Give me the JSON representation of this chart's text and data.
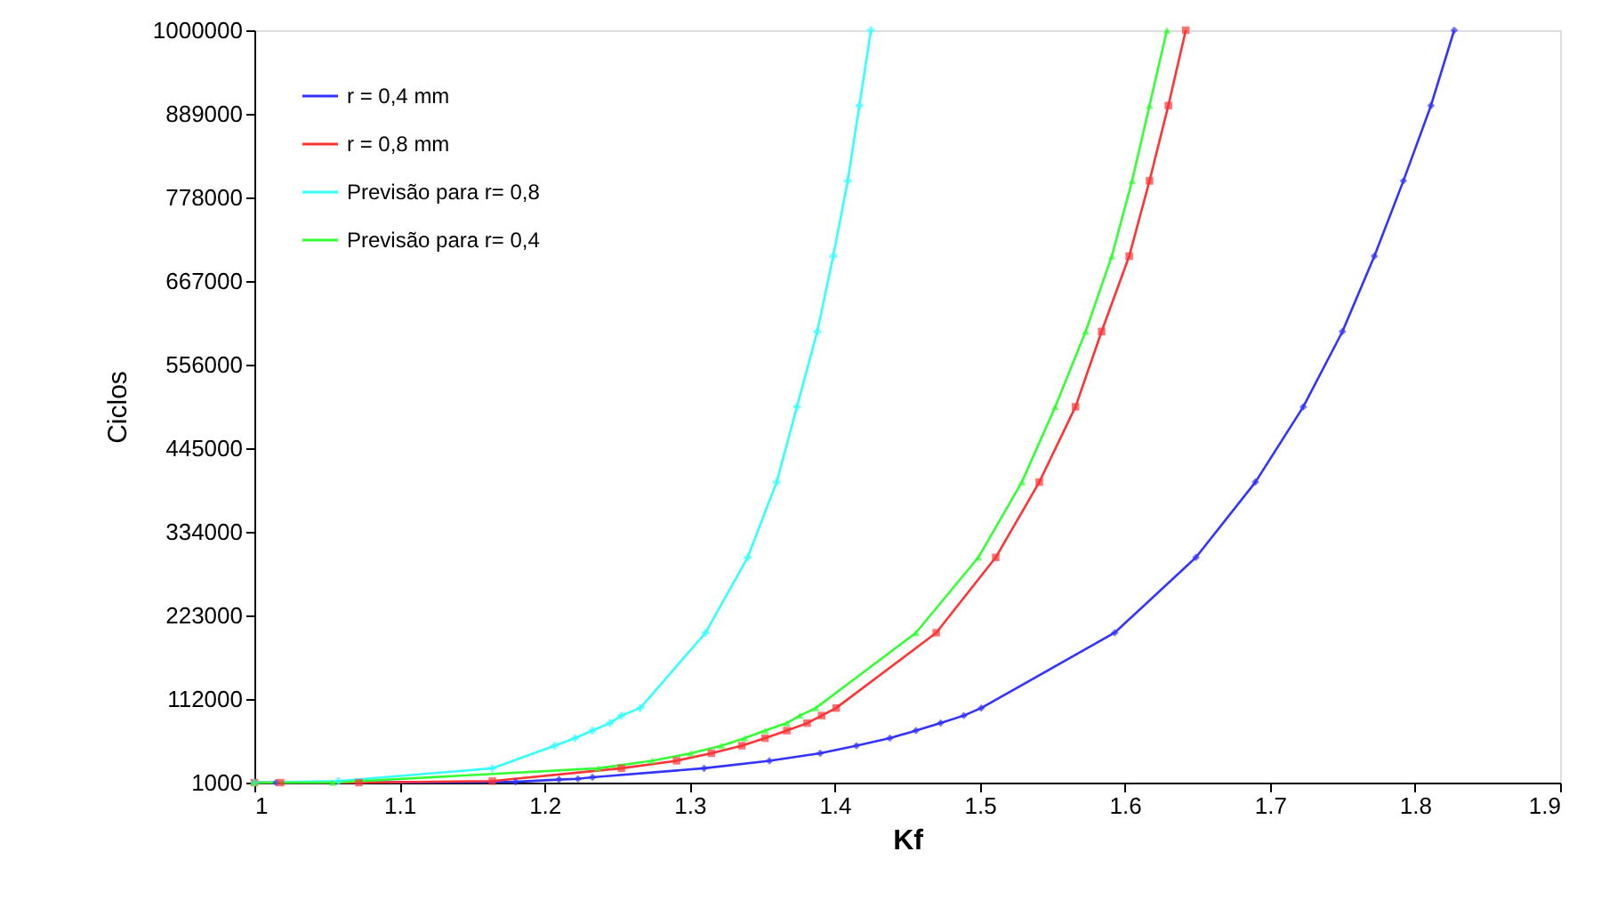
{
  "chart_data": {
    "type": "line",
    "xlabel": "Kf",
    "ylabel": "Ciclos",
    "xlim": [
      1,
      1.9
    ],
    "xticks": [
      1,
      1.1,
      1.2,
      1.3,
      1.4,
      1.5,
      1.6,
      1.7,
      1.8,
      1.9
    ],
    "ylim": [
      1000,
      1000000
    ],
    "yticks": [
      1000,
      112000,
      223000,
      334000,
      445000,
      556000,
      667000,
      778000,
      889000,
      1000000
    ],
    "grid": false,
    "legend": "top left",
    "line_style": "solid",
    "series": [
      {
        "name": "r = 0,4 mm",
        "color": "#3333ff",
        "marker": "diamond",
        "x": [
          1.0,
          1.015,
          1.18,
          1.21,
          1.223,
          1.233,
          1.31,
          1.355,
          1.39,
          1.415,
          1.438,
          1.456,
          1.473,
          1.489,
          1.501,
          1.593,
          1.649,
          1.69,
          1.723,
          1.75,
          1.772,
          1.792,
          1.811,
          1.827
        ],
        "values": [
          1000,
          1000,
          2000,
          5000,
          6000,
          8000,
          20000,
          30000,
          40000,
          50000,
          60000,
          70000,
          80000,
          90000,
          100000,
          200000,
          300000,
          400000,
          500000,
          600000,
          700000,
          800000,
          900000,
          1000000
        ]
      },
      {
        "name": "r = 0,8 mm",
        "color": "#ff3333",
        "marker": "square",
        "x": [
          1.0,
          1.018,
          1.072,
          1.164,
          1.253,
          1.291,
          1.315,
          1.336,
          1.352,
          1.367,
          1.381,
          1.391,
          1.401,
          1.47,
          1.511,
          1.541,
          1.566,
          1.584,
          1.603,
          1.617,
          1.63,
          1.642
        ],
        "values": [
          1000,
          1000,
          1000,
          3000,
          20000,
          30000,
          40000,
          50000,
          60000,
          70000,
          80000,
          90000,
          100000,
          200000,
          300000,
          400000,
          500000,
          600000,
          700000,
          800000,
          900000,
          1000000
        ]
      },
      {
        "name": "Previsão para r= 0,8",
        "color": "#33ffff",
        "marker": "cross",
        "x": [
          1.0,
          1.058,
          1.164,
          1.207,
          1.221,
          1.233,
          1.245,
          1.253,
          1.266,
          1.311,
          1.34,
          1.36,
          1.374,
          1.388,
          1.399,
          1.409,
          1.417,
          1.425
        ],
        "values": [
          1000,
          3000,
          20000,
          50000,
          60000,
          70000,
          80000,
          90000,
          100000,
          200000,
          300000,
          400000,
          500000,
          600000,
          700000,
          800000,
          900000,
          1000000
        ]
      },
      {
        "name": "Previsão para r= 0,4",
        "color": "#33ff33",
        "marker": "triangle",
        "x": [
          1.0,
          1.054,
          1.237,
          1.274,
          1.301,
          1.322,
          1.338,
          1.352,
          1.367,
          1.376,
          1.387,
          1.456,
          1.499,
          1.529,
          1.552,
          1.573,
          1.591,
          1.605,
          1.617,
          1.629
        ],
        "values": [
          1000,
          1000,
          20000,
          30000,
          40000,
          50000,
          60000,
          70000,
          80000,
          90000,
          100000,
          200000,
          300000,
          400000,
          500000,
          600000,
          700000,
          800000,
          900000,
          1000000
        ]
      }
    ]
  }
}
